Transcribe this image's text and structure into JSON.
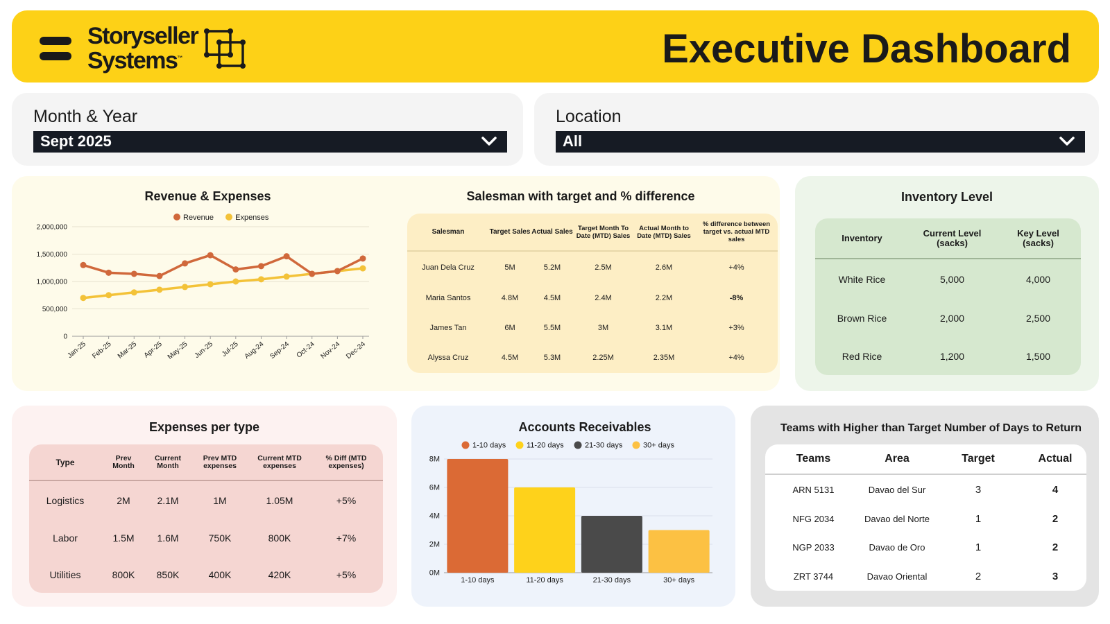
{
  "header": {
    "logo_line1": "Storyseller",
    "logo_line2": "Systems",
    "logo_tm": "™",
    "title": "Executive Dashboard",
    "accent": "#fdd117"
  },
  "filters": {
    "month": {
      "label": "Month & Year",
      "value": "Sept 2025"
    },
    "location": {
      "label": "Location",
      "value": "All"
    }
  },
  "revenue_card": {
    "title": "Revenue & Expenses",
    "legend": [
      "Revenue",
      "Expenses"
    ]
  },
  "salesman_card": {
    "title": "Salesman with target and % difference",
    "headers": [
      "Salesman",
      "Target Sales",
      "Actual Sales",
      "Target Month To Date (MTD) Sales",
      "Actual Month to Date (MTD) Sales",
      "% difference between target vs. actual MTD sales"
    ],
    "rows": [
      [
        "Juan Dela Cruz",
        "5M",
        "5.2M",
        "2.5M",
        "2.6M",
        "+4%"
      ],
      [
        "Maria Santos",
        "4.8M",
        "4.5M",
        "2.4M",
        "2.2M",
        "-8%"
      ],
      [
        "James Tan",
        "6M",
        "5.5M",
        "3M",
        "3.1M",
        "+3%"
      ],
      [
        "Alyssa Cruz",
        "4.5M",
        "5.3M",
        "2.25M",
        "2.35M",
        "+4%"
      ]
    ]
  },
  "inventory_card": {
    "title": "Inventory Level",
    "headers": [
      "Inventory",
      "Current Level (sacks)",
      "Key Level (sacks)"
    ],
    "rows": [
      [
        "White Rice",
        "5,000",
        "4,000"
      ],
      [
        "Brown Rice",
        "2,000",
        "2,500"
      ],
      [
        "Red Rice",
        "1,200",
        "1,500"
      ]
    ]
  },
  "expenses_card": {
    "title": "Expenses per type",
    "headers": [
      "Type",
      "Prev Month",
      "Current Month",
      "Prev MTD expenses",
      "Current MTD expenses",
      "% Diff (MTD expenses)"
    ],
    "rows": [
      [
        "Logistics",
        "2M",
        "2.1M",
        "1M",
        "1.05M",
        "+5%"
      ],
      [
        "Labor",
        "1.5M",
        "1.6M",
        "750K",
        "800K",
        "+7%"
      ],
      [
        "Utilities",
        "800K",
        "850K",
        "400K",
        "420K",
        "+5%"
      ]
    ]
  },
  "ar_card": {
    "title": "Accounts Receivables"
  },
  "teams_card": {
    "title": "Teams with Higher than Target Number of Days to Return",
    "headers": [
      "Teams",
      "Area",
      "Target",
      "Actual"
    ],
    "rows": [
      [
        "ARN 5131",
        "Davao del Sur",
        "3",
        "4"
      ],
      [
        "NFG 2034",
        "Davao del Norte",
        "1",
        "2"
      ],
      [
        "NGP 2033",
        "Davao de Oro",
        "1",
        "2"
      ],
      [
        "ZRT 3744",
        "Davao Oriental",
        "2",
        "3"
      ]
    ]
  },
  "chart_data": [
    {
      "type": "line",
      "title": "Revenue & Expenses",
      "x": [
        "Jan-25",
        "Feb-25",
        "Mar-25",
        "Apr-25",
        "May-25",
        "Jun-25",
        "Jul-25",
        "Aug-24",
        "Sep-24",
        "Oct-24",
        "Nov-24",
        "Dec-24"
      ],
      "ylim": [
        0,
        2000000
      ],
      "yticks": [
        0,
        500000,
        1000000,
        1500000,
        2000000
      ],
      "ytick_labels": [
        "0",
        "500,000",
        "1,000,000",
        "1,500,000",
        "2,000,000"
      ],
      "grid": true,
      "legend_position": "top",
      "series": [
        {
          "name": "Revenue",
          "color": "#d0683b",
          "values": [
            1300000,
            1160000,
            1140000,
            1100000,
            1330000,
            1480000,
            1220000,
            1280000,
            1460000,
            1140000,
            1190000,
            1420000
          ]
        },
        {
          "name": "Expenses",
          "color": "#f3c238",
          "values": [
            700000,
            750000,
            800000,
            850000,
            900000,
            950000,
            1000000,
            1040000,
            1090000,
            1140000,
            1190000,
            1240000
          ]
        }
      ]
    },
    {
      "type": "bar",
      "title": "Accounts Receivables",
      "categories": [
        "1-10 days",
        "11-20 days",
        "21-30 days",
        "30+ days"
      ],
      "values": [
        8000000,
        6000000,
        4000000,
        3000000
      ],
      "colors": [
        "#db6a35",
        "#fed21b",
        "#4a4a4a",
        "#fcc143"
      ],
      "ylim": [
        0,
        8000000
      ],
      "yticks": [
        0,
        2000000,
        4000000,
        6000000,
        8000000
      ],
      "ytick_labels": [
        "0M",
        "2M",
        "4M",
        "6M",
        "8M"
      ],
      "grid": true,
      "legend_position": "top"
    }
  ]
}
